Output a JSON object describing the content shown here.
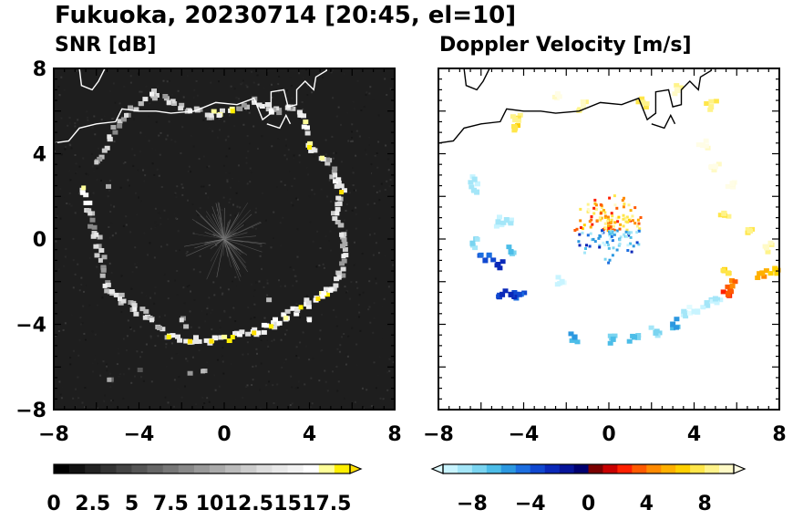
{
  "figure": {
    "title": "Fukuoka, 20230714 [20:45, el=10]"
  },
  "chart_data": [
    {
      "type": "heatmap",
      "title": "SNR [dB]",
      "xlim": [
        -8,
        8
      ],
      "ylim": [
        -8,
        8
      ],
      "x_ticks": [
        "−8",
        "−4",
        "0",
        "4",
        "8"
      ],
      "y_ticks": [
        "8",
        "4",
        "0",
        "−4",
        "−8"
      ],
      "background_color": "#1e1e1e",
      "colorbar": {
        "range": [
          0,
          19
        ],
        "extend": "max",
        "tick_labels": [
          "0",
          "2.5",
          "5",
          "7.5",
          "10",
          "12.5",
          "15",
          "17.5"
        ],
        "tick_values": [
          0,
          2.5,
          5,
          7.5,
          10,
          12.5,
          15,
          17.5
        ],
        "colors": [
          "#000000",
          "#111111",
          "#222222",
          "#333333",
          "#444444",
          "#555555",
          "#666666",
          "#777777",
          "#888888",
          "#999999",
          "#aaaaaa",
          "#bbbbbb",
          "#cccccc",
          "#dddddd",
          "#e8e8e8",
          "#f2f2f2",
          "#ffffff",
          "#ffff99",
          "#ffef00"
        ],
        "over_color": "#ffe000"
      },
      "ring": {
        "center": [
          0,
          0
        ],
        "shape": "irregular ring of echoes at about 5 km range",
        "points": [
          {
            "x": -6.6,
            "y": 2.4,
            "v": 17
          },
          {
            "x": -6.3,
            "y": 1.2,
            "v": 13
          },
          {
            "x": -6.0,
            "y": 0.2,
            "v": 14
          },
          {
            "x": -5.8,
            "y": -1.0,
            "v": 12
          },
          {
            "x": -5.6,
            "y": -2.2,
            "v": 15
          },
          {
            "x": -4.9,
            "y": -2.8,
            "v": 14
          },
          {
            "x": -4.2,
            "y": -3.3,
            "v": 15
          },
          {
            "x": -3.4,
            "y": -3.8,
            "v": 14
          },
          {
            "x": -2.6,
            "y": -4.6,
            "v": 18
          },
          {
            "x": -1.6,
            "y": -4.8,
            "v": 19
          },
          {
            "x": -0.6,
            "y": -4.8,
            "v": 19
          },
          {
            "x": 0.4,
            "y": -4.6,
            "v": 18
          },
          {
            "x": 1.4,
            "y": -4.4,
            "v": 19
          },
          {
            "x": 2.2,
            "y": -4.1,
            "v": 18
          },
          {
            "x": 2.9,
            "y": -3.7,
            "v": 17
          },
          {
            "x": 3.6,
            "y": -3.2,
            "v": 18
          },
          {
            "x": 4.4,
            "y": -2.8,
            "v": 19
          },
          {
            "x": 5.0,
            "y": -2.4,
            "v": 16
          },
          {
            "x": 5.4,
            "y": -1.8,
            "v": 14
          },
          {
            "x": 5.6,
            "y": -0.8,
            "v": 15
          },
          {
            "x": 5.5,
            "y": 0.2,
            "v": 14
          },
          {
            "x": 5.3,
            "y": 1.2,
            "v": 15
          },
          {
            "x": 5.5,
            "y": 2.2,
            "v": 19
          },
          {
            "x": 5.2,
            "y": 3.0,
            "v": 14
          },
          {
            "x": 4.6,
            "y": 3.8,
            "v": 17
          },
          {
            "x": 4.0,
            "y": 4.3,
            "v": 18
          },
          {
            "x": 3.6,
            "y": 5.8,
            "v": 15
          },
          {
            "x": 3.0,
            "y": 6.2,
            "v": 14
          },
          {
            "x": 2.2,
            "y": 6.0,
            "v": 16
          },
          {
            "x": 1.4,
            "y": 6.4,
            "v": 14
          },
          {
            "x": 0.4,
            "y": 6.0,
            "v": 18
          },
          {
            "x": -0.6,
            "y": 5.8,
            "v": 14
          },
          {
            "x": -1.6,
            "y": 6.0,
            "v": 15
          },
          {
            "x": -2.6,
            "y": 6.4,
            "v": 14
          },
          {
            "x": -3.4,
            "y": 6.8,
            "v": 15
          },
          {
            "x": -4.6,
            "y": 5.8,
            "v": 13
          },
          {
            "x": -5.4,
            "y": 4.8,
            "v": 14
          },
          {
            "x": -6.0,
            "y": 3.6,
            "v": 12
          },
          {
            "x": -2.0,
            "y": -3.8,
            "v": 13
          },
          {
            "x": -1.0,
            "y": -6.2,
            "v": 11
          },
          {
            "x": -5.4,
            "y": -6.6,
            "v": 10
          },
          {
            "x": 4.0,
            "y": -3.8,
            "v": 16
          }
        ]
      }
    },
    {
      "type": "heatmap",
      "title": "Doppler Velocity [m/s]",
      "xlim": [
        -8,
        8
      ],
      "ylim": [
        -8,
        8
      ],
      "x_ticks": [
        "−8",
        "−4",
        "0",
        "4",
        "8"
      ],
      "background_color": "#ffffff",
      "colorbar": {
        "range": [
          -10,
          10
        ],
        "extend": "both",
        "tick_labels": [
          "−8",
          "−4",
          "0",
          "4",
          "8"
        ],
        "tick_values": [
          -8,
          -4,
          0,
          4,
          8
        ],
        "colors": [
          "#c8f4ff",
          "#a4e6f8",
          "#7ad4f0",
          "#4cbde8",
          "#2c98e0",
          "#1c6ee0",
          "#1048d0",
          "#0a28b8",
          "#06149a",
          "#000070",
          "#7a0000",
          "#c80000",
          "#ff2000",
          "#ff5a00",
          "#ff8a00",
          "#ffb000",
          "#ffd000",
          "#ffe64a",
          "#fff38a",
          "#fffac6"
        ],
        "under_color": "#e0fbff",
        "over_color": "#fffde6"
      },
      "points": [
        {
          "x": -6.2,
          "y": 2.2,
          "v": -9
        },
        {
          "x": -6.3,
          "y": 2.8,
          "v": -9
        },
        {
          "x": -6.4,
          "y": -0.2,
          "v": -8
        },
        {
          "x": -5.2,
          "y": 0.8,
          "v": -9
        },
        {
          "x": -4.8,
          "y": 0.9,
          "v": -9
        },
        {
          "x": -4.6,
          "y": -0.6,
          "v": -7
        },
        {
          "x": -5.8,
          "y": -1.0,
          "v": -4
        },
        {
          "x": -5.2,
          "y": -1.2,
          "v": -3
        },
        {
          "x": -5.0,
          "y": -2.6,
          "v": -3
        },
        {
          "x": -4.2,
          "y": -2.6,
          "v": -4
        },
        {
          "x": -1.6,
          "y": -4.6,
          "v": -6
        },
        {
          "x": 0.2,
          "y": -4.7,
          "v": -7
        },
        {
          "x": 1.2,
          "y": -4.6,
          "v": -7
        },
        {
          "x": 2.2,
          "y": -4.4,
          "v": -8
        },
        {
          "x": 3.0,
          "y": -4.0,
          "v": -6
        },
        {
          "x": 3.6,
          "y": -3.6,
          "v": -9
        },
        {
          "x": 4.0,
          "y": -3.4,
          "v": -10
        },
        {
          "x": 4.6,
          "y": -3.0,
          "v": -9
        },
        {
          "x": 5.0,
          "y": -2.8,
          "v": -9
        },
        {
          "x": 5.6,
          "y": -2.6,
          "v": 3
        },
        {
          "x": 5.8,
          "y": -2.2,
          "v": 4
        },
        {
          "x": 5.6,
          "y": -1.6,
          "v": 7
        },
        {
          "x": 7.2,
          "y": -1.6,
          "v": 5
        },
        {
          "x": 7.8,
          "y": -1.4,
          "v": 6
        },
        {
          "x": 7.4,
          "y": -0.4,
          "v": 9
        },
        {
          "x": 6.6,
          "y": 0.4,
          "v": 8
        },
        {
          "x": 5.4,
          "y": 1.2,
          "v": 8
        },
        {
          "x": 5.8,
          "y": 2.6,
          "v": 10
        },
        {
          "x": 5.0,
          "y": 3.4,
          "v": 10
        },
        {
          "x": 4.4,
          "y": 4.4,
          "v": 10
        },
        {
          "x": 4.8,
          "y": 6.2,
          "v": 8
        },
        {
          "x": 3.2,
          "y": 7.0,
          "v": 9
        },
        {
          "x": 1.6,
          "y": 6.4,
          "v": 8
        },
        {
          "x": -1.2,
          "y": 6.2,
          "v": 9
        },
        {
          "x": -2.4,
          "y": 6.8,
          "v": 10
        },
        {
          "x": -4.4,
          "y": 5.6,
          "v": 8
        },
        {
          "x": -4.4,
          "y": 5.2,
          "v": 7
        },
        {
          "x": -2.2,
          "y": -2.0,
          "v": -10
        },
        {
          "x": -4.6,
          "y": -2.6,
          "v": -3
        }
      ],
      "center_cluster": {
        "x": 0,
        "y": 0.4,
        "radius": 1.2
      }
    }
  ],
  "map_overlay": {
    "description": "coastline outline"
  },
  "colors": {
    "axes": "#000000",
    "coastline_snr": "#ffffff",
    "coastline_vel": "#000000"
  }
}
